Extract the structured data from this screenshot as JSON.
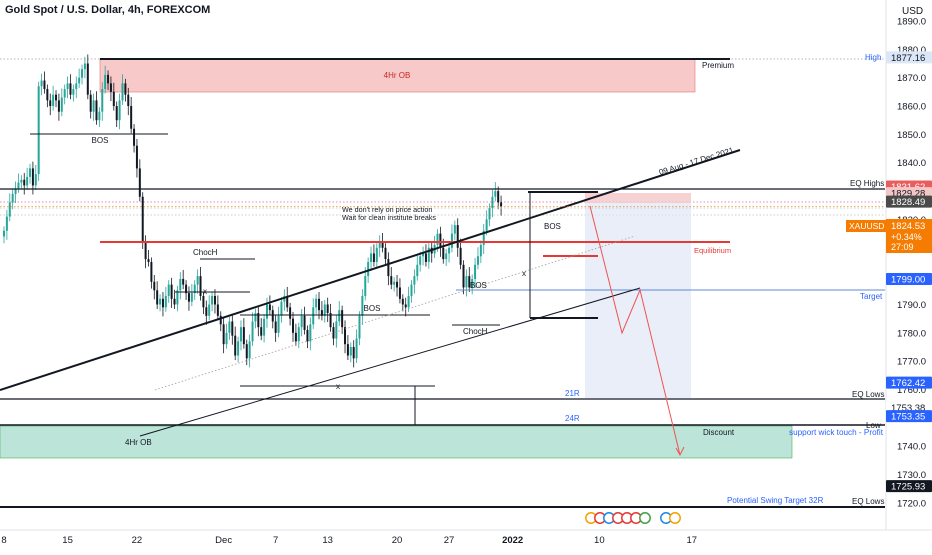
{
  "header": {
    "title": "Gold Spot / U.S. Dollar, 4h, FOREXCOM",
    "currency": "USD"
  },
  "chart_data": {
    "type": "candlestick",
    "symbol": "XAUUSD",
    "ylim": [
      1715,
      1895
    ],
    "y_ticks": [
      1890,
      1880,
      1870,
      1860,
      1850,
      1840,
      1830,
      1820,
      1810,
      1800,
      1790,
      1780,
      1770,
      1760,
      1740,
      1730,
      1720
    ],
    "x_ticks": [
      {
        "label": "8",
        "i": 0
      },
      {
        "label": "15",
        "i": 22
      },
      {
        "label": "22",
        "i": 46
      },
      {
        "label": "Dec",
        "i": 76
      },
      {
        "label": "7",
        "i": 94
      },
      {
        "label": "13",
        "i": 112
      },
      {
        "label": "20",
        "i": 136
      },
      {
        "label": "27",
        "i": 154
      },
      {
        "label": "2022",
        "i": 176
      },
      {
        "label": "10",
        "i": 206
      },
      {
        "label": "17",
        "i": 238
      }
    ],
    "closes": [
      1816,
      1821,
      1826,
      1829,
      1831,
      1833,
      1834,
      1832,
      1835,
      1838,
      1832,
      1836,
      1867,
      1869,
      1866,
      1862,
      1860,
      1864,
      1862,
      1858,
      1863,
      1866,
      1868,
      1864,
      1866,
      1868,
      1870,
      1873,
      1875,
      1864,
      1858,
      1862,
      1855,
      1858,
      1866,
      1871,
      1868,
      1865,
      1860,
      1855,
      1862,
      1868,
      1864,
      1860,
      1852,
      1846,
      1838,
      1828,
      1812,
      1806,
      1805,
      1798,
      1795,
      1790,
      1792,
      1789,
      1793,
      1797,
      1792,
      1790,
      1795,
      1799,
      1797,
      1794,
      1791,
      1794,
      1797,
      1800,
      1793,
      1789,
      1786,
      1790,
      1793,
      1790,
      1786,
      1783,
      1776,
      1780,
      1784,
      1779,
      1772,
      1777,
      1782,
      1776,
      1771,
      1777,
      1784,
      1787,
      1782,
      1779,
      1785,
      1790,
      1788,
      1784,
      1780,
      1786,
      1791,
      1793,
      1789,
      1785,
      1780,
      1777,
      1782,
      1786,
      1781,
      1777,
      1783,
      1789,
      1792,
      1788,
      1786,
      1790,
      1787,
      1782,
      1778,
      1784,
      1788,
      1782,
      1776,
      1772,
      1775,
      1771,
      1778,
      1786,
      1793,
      1800,
      1805,
      1808,
      1805,
      1810,
      1812,
      1810,
      1806,
      1800,
      1797,
      1798,
      1796,
      1792,
      1790,
      1789,
      1793,
      1797,
      1800,
      1804,
      1807,
      1808,
      1805,
      1810,
      1808,
      1811,
      1815,
      1810,
      1806,
      1808,
      1810,
      1815,
      1818,
      1810,
      1804,
      1796,
      1800,
      1796,
      1799,
      1804,
      1807,
      1811,
      1816,
      1820,
      1824,
      1828,
      1830,
      1826,
      1824.53
    ],
    "levels": [
      {
        "label": "High",
        "value": 1877.16
      },
      {
        "label": "EQ Highs",
        "value": 1831.62
      },
      {
        "label": "EQ Lows",
        "value": 1762.42
      },
      {
        "label": "Low",
        "value": 1753.38
      },
      {
        "label": "EQ Lows",
        "value": 1725.93
      }
    ],
    "price_tags": [
      {
        "value": "1877.16",
        "y": 1877.16,
        "bg": "#dbe6f7",
        "fg": "#131722"
      },
      {
        "value": "1831.62",
        "y": 1831.62,
        "bg": "#e85d5d",
        "fg": "#ffffff"
      },
      {
        "value": "1829.28",
        "y": 1829.28,
        "bg": "#f4c7c7",
        "fg": "#131722"
      },
      {
        "value": "1828.49",
        "y": 1826.3,
        "bg": "#4a4a4a",
        "fg": "#ffffff"
      },
      {
        "value": "1799.00",
        "y": 1799.0,
        "bg": "#2962ff",
        "fg": "#ffffff"
      },
      {
        "value": "1762.42",
        "y": 1762.42,
        "bg": "#2962ff",
        "fg": "#ffffff"
      },
      {
        "value": "1753.38",
        "y": 1753.6,
        "bg": "#ffffff",
        "fg": "#131722"
      },
      {
        "value": "1753.35",
        "y": 1750.6,
        "bg": "#2962ff",
        "fg": "#ffffff"
      },
      {
        "value": "1725.93",
        "y": 1725.93,
        "bg": "#131722",
        "fg": "#ffffff"
      }
    ],
    "current": {
      "symbol": "XAUUSD",
      "price": "1824.53",
      "change": "+0.34%",
      "countdown": "27:09",
      "color": "#f57c00"
    },
    "colors": {
      "up": "#26a69a",
      "down": "#131722",
      "ob_bear": "#f5b7b7",
      "ob_bull": "#9fd8c9",
      "red_line": "#e53935",
      "target": "#2962ff",
      "projection": "#ef5350"
    }
  },
  "annotations": {
    "premium": "Premium",
    "ob_top": "4Hr OB",
    "ob_bottom": "4Hr OB",
    "bos_left": "BOS",
    "bos_mid": "BOS",
    "bos_right": "BOS",
    "bos_right2": "BOS",
    "choch_left": "ChocH",
    "choch_right": "ChocH",
    "x1": "x",
    "x2": "x",
    "x3": "x",
    "trend_label": "09 Aug - 17 Dec 2021",
    "note_line1": "We don't rely on price action",
    "note_line2": "Wait for clean institute breaks",
    "equilibrium": "Equilibrium",
    "target": "Target",
    "eq_highs": "EQ Highs",
    "eq_lows": "EQ Lows",
    "eq_lows2": "EQ Lows",
    "high": "High",
    "low": "Low",
    "discount": "Discount",
    "r21": "21R",
    "r24": "24R",
    "swing_target": "Potential Swing Target 32R",
    "support_wick": "support wick touch - Profit"
  }
}
